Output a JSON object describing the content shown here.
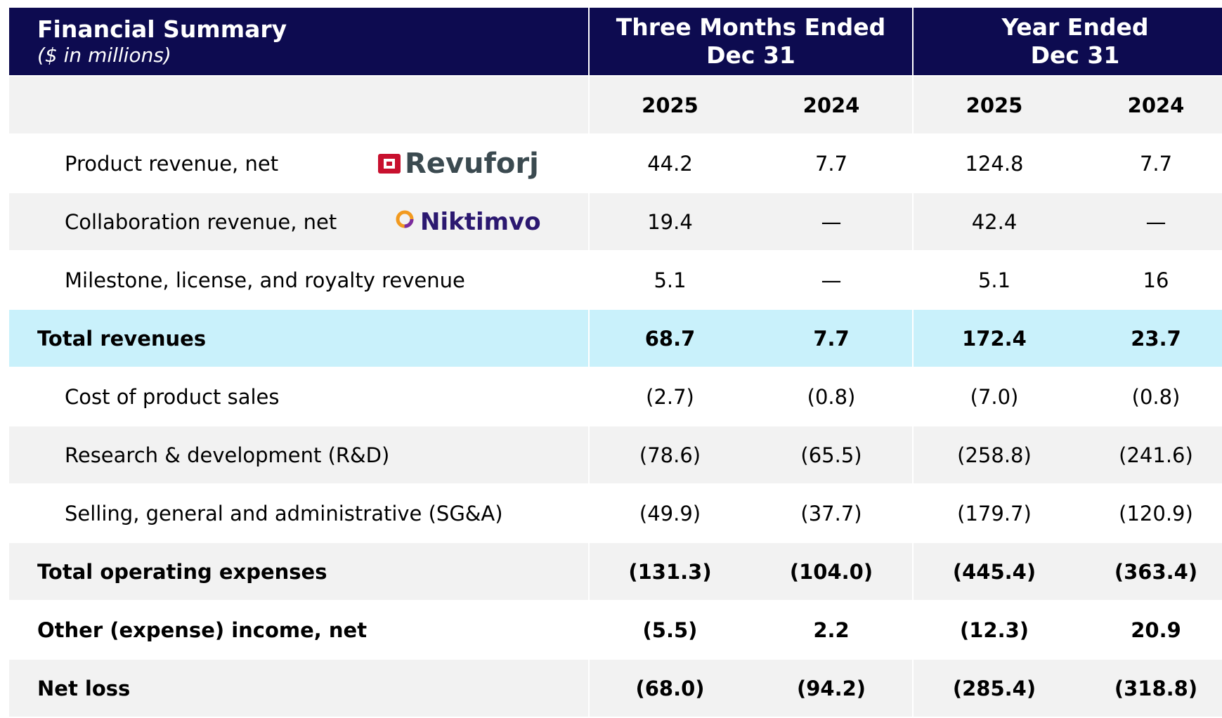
{
  "header": {
    "title": "Financial Summary",
    "subtitle": "($ in millions)",
    "groups": [
      "Three Months Ended\nDec 31",
      "Year Ended\nDec 31"
    ],
    "years": [
      "2025",
      "2024",
      "2025",
      "2024"
    ]
  },
  "table": {
    "rows": [
      {
        "label": "Product revenue, net",
        "logo": {
          "text": "Revuforj",
          "color": "#3b4a50",
          "icon": "#c8102e"
        },
        "values": [
          "44.2",
          "7.7",
          "124.8",
          "7.7"
        ],
        "bold": false,
        "shade": "#ffffff"
      },
      {
        "label": "Collaboration revenue, net",
        "logo": {
          "text": "Niktimvo",
          "color": "#2b1870",
          "icon": "#f29a1f"
        },
        "values": [
          "19.4",
          "—",
          "42.4",
          "—"
        ],
        "bold": false,
        "shade": "#f2f2f2"
      },
      {
        "label": "Milestone, license, and royalty revenue",
        "values": [
          "5.1",
          "—",
          "5.1",
          "16"
        ],
        "bold": false,
        "shade": "#ffffff"
      },
      {
        "label": "Total revenues",
        "values": [
          "68.7",
          "7.7",
          "172.4",
          "23.7"
        ],
        "bold": true,
        "shade": "#c9f1fb"
      },
      {
        "label": "Cost of product sales",
        "values": [
          "(2.7)",
          "(0.8)",
          "(7.0)",
          "(0.8)"
        ],
        "bold": false,
        "shade": "#ffffff"
      },
      {
        "label": "Research & development (R&D)",
        "values": [
          "(78.6)",
          "(65.5)",
          "(258.8)",
          "(241.6)"
        ],
        "bold": false,
        "shade": "#f2f2f2"
      },
      {
        "label": "Selling, general and administrative (SG&A)",
        "values": [
          "(49.9)",
          "(37.7)",
          "(179.7)",
          "(120.9)"
        ],
        "bold": false,
        "shade": "#ffffff"
      },
      {
        "label": "Total operating expenses",
        "values": [
          "(131.3)",
          "(104.0)",
          "(445.4)",
          "(363.4)"
        ],
        "bold": true,
        "shade": "#f2f2f2"
      },
      {
        "label": "Other (expense) income, net",
        "values": [
          "(5.5)",
          "2.2",
          "(12.3)",
          "20.9"
        ],
        "bold": true,
        "shade": "#ffffff"
      },
      {
        "label": "Net loss",
        "values": [
          "(68.0)",
          "(94.2)",
          "(285.4)",
          "(318.8)"
        ],
        "bold": true,
        "shade": "#f2f2f2"
      }
    ]
  }
}
